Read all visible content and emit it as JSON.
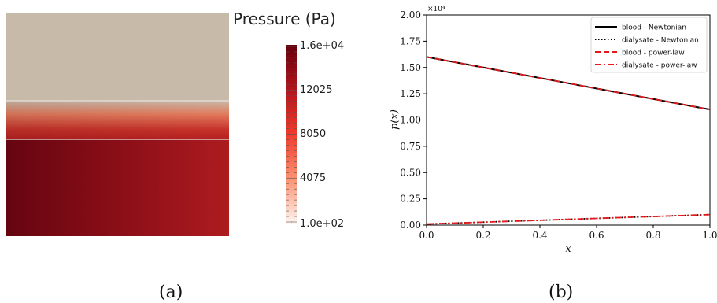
{
  "panel_a": {
    "colorbar_title": "Pressure (Pa)",
    "colorbar_ticks": [
      "1.6e+04",
      "12025",
      "8050",
      "4075",
      "1.0e+02"
    ],
    "caption": "(a)",
    "colors": {
      "top": "#c8baaa",
      "dark": "#6a0511",
      "light": "#fbeae4",
      "red": "#a8181e"
    }
  },
  "panel_b": {
    "caption": "(b)",
    "exponent_label": "×10⁴"
  },
  "chart_data": {
    "type": "line",
    "xlabel": "x",
    "ylabel": "p(x)",
    "xlim": [
      0,
      1
    ],
    "ylim": [
      0,
      20000
    ],
    "x_ticks": [
      "0.0",
      "0.2",
      "0.4",
      "0.6",
      "0.8",
      "1.0"
    ],
    "y_ticks": [
      "0.00",
      "0.25",
      "0.50",
      "0.75",
      "1.00",
      "1.25",
      "1.50",
      "1.75",
      "2.00"
    ],
    "legend_position": "top-right",
    "grid": false,
    "series": [
      {
        "name": "blood - Newtonian",
        "x": [
          0,
          1
        ],
        "y": [
          16000,
          11000
        ],
        "color": "#000000",
        "style": "solid"
      },
      {
        "name": "dialysate - Newtonian",
        "x": [
          0,
          1
        ],
        "y": [
          100,
          1000
        ],
        "color": "#000000",
        "style": "dotted"
      },
      {
        "name": "blood - power-law",
        "x": [
          0,
          1
        ],
        "y": [
          16000,
          11000
        ],
        "color": "#e41a1c",
        "style": "dashed"
      },
      {
        "name": "dialysate - power-law",
        "x": [
          0,
          1
        ],
        "y": [
          100,
          1000
        ],
        "color": "#e41a1c",
        "style": "dashdot"
      }
    ]
  }
}
